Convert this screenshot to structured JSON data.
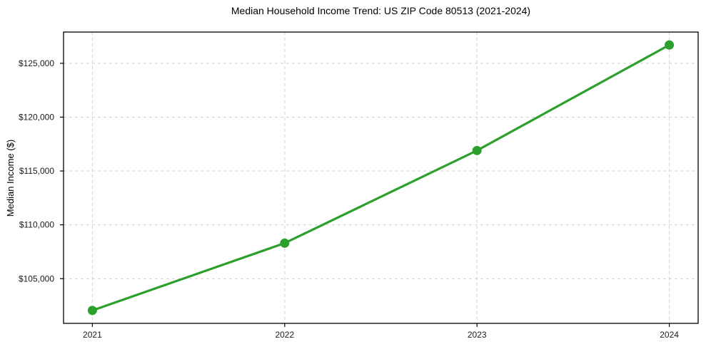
{
  "chart_data": {
    "type": "line",
    "title": "Median Household Income Trend: US ZIP Code 80513 (2021-2024)",
    "xlabel": "",
    "ylabel": "Median Income ($)",
    "categories": [
      "2021",
      "2022",
      "2023",
      "2024"
    ],
    "x": [
      2021,
      2022,
      2023,
      2024
    ],
    "series": [
      {
        "name": "Median Household Income",
        "values": [
          102050,
          108300,
          116900,
          126700
        ]
      }
    ],
    "yticks": [
      105000,
      110000,
      115000,
      120000,
      125000
    ],
    "ytick_labels": [
      "$105,000",
      "$110,000",
      "$115,000",
      "$120,000",
      "$125,000"
    ],
    "xlim": [
      2020.85,
      2024.15
    ],
    "ylim": [
      100850,
      127900
    ],
    "grid": true,
    "grid_style": "dashed",
    "legend": "none",
    "line_color": "#2ca02c",
    "marker": "circle",
    "marker_size": 13
  }
}
